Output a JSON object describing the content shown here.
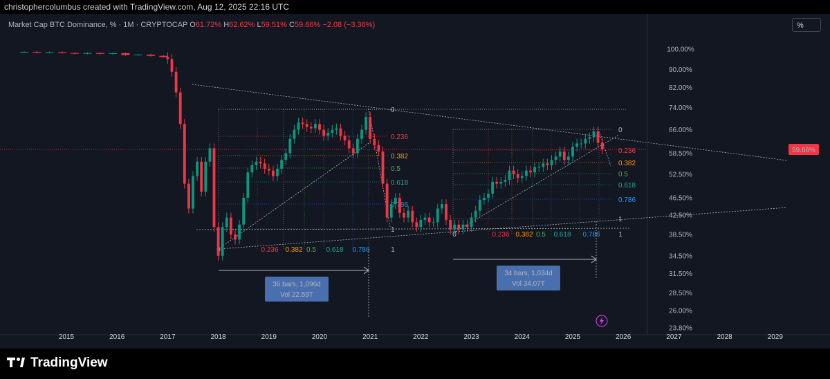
{
  "attribution": "christophercolumbus created with TradingView.com, Aug 12, 2025 22:16 UTC",
  "legend": {
    "symbol": "Market Cap BTC Dominance, % · 1M · CRYPTOCAP",
    "o_label": "O",
    "o": "61.72%",
    "h_label": "H",
    "h": "62.62%",
    "l_label": "L",
    "l": "59.51%",
    "c_label": "C",
    "c": "59.66%",
    "change": "−2.08 (−3.36%)"
  },
  "scale_button": "%",
  "logo": "TradingView",
  "colors": {
    "up": "#089981",
    "down": "#f23645",
    "bg": "#131722"
  },
  "chart_data": {
    "type": "candlestick",
    "y_scale": "log",
    "y_ticks": [
      "100.00%",
      "90.00%",
      "82.00%",
      "74.00%",
      "66.00%",
      "58.50%",
      "52.50%",
      "46.50%",
      "42.50%",
      "38.50%",
      "34.50%",
      "31.50%",
      "28.50%",
      "26.00%",
      "23.80%"
    ],
    "y_tick_values": [
      100,
      90,
      82,
      74,
      66,
      58.5,
      52.5,
      46.5,
      42.5,
      38.5,
      34.5,
      31.5,
      28.5,
      26,
      23.8
    ],
    "x_ticks": [
      "2015",
      "2016",
      "2017",
      "2018",
      "2019",
      "2020",
      "2021",
      "2022",
      "2023",
      "2024",
      "2025",
      "2026",
      "2027",
      "2028",
      "2029"
    ],
    "last_price_label": "59.66%",
    "last_price": 59.66,
    "closes": [
      {
        "date": "2014-03",
        "close": 98.6
      },
      {
        "date": "2014-06",
        "close": 98.2
      },
      {
        "date": "2014-09",
        "close": 98.4
      },
      {
        "date": "2014-12",
        "close": 98.0
      },
      {
        "date": "2015-03",
        "close": 97.7
      },
      {
        "date": "2015-06",
        "close": 98.0
      },
      {
        "date": "2015-09",
        "close": 97.6
      },
      {
        "date": "2015-12",
        "close": 97.9
      },
      {
        "date": "2016-03",
        "close": 97.0
      },
      {
        "date": "2016-06",
        "close": 97.2
      },
      {
        "date": "2016-09",
        "close": 96.6
      },
      {
        "date": "2016-12",
        "close": 96.0
      },
      {
        "date": "2017-01",
        "close": 95.0
      },
      {
        "date": "2017-02",
        "close": 89.0
      },
      {
        "date": "2017-03",
        "close": 80.0
      },
      {
        "date": "2017-04",
        "close": 68.0
      },
      {
        "date": "2017-05",
        "close": 50.0
      },
      {
        "date": "2017-06",
        "close": 44.0
      },
      {
        "date": "2017-07",
        "close": 52.0
      },
      {
        "date": "2017-08",
        "close": 56.0
      },
      {
        "date": "2017-09",
        "close": 48.0
      },
      {
        "date": "2017-10",
        "close": 56.0
      },
      {
        "date": "2017-11",
        "close": 60.0
      },
      {
        "date": "2017-12",
        "close": 40.0
      },
      {
        "date": "2018-01",
        "close": 34.5
      },
      {
        "date": "2018-02",
        "close": 40.0
      },
      {
        "date": "2018-03",
        "close": 42.0
      },
      {
        "date": "2018-04",
        "close": 38.5
      },
      {
        "date": "2018-05",
        "close": 37.5
      },
      {
        "date": "2018-06",
        "close": 40.5
      },
      {
        "date": "2018-07",
        "close": 46.5
      },
      {
        "date": "2018-08",
        "close": 53.0
      },
      {
        "date": "2018-09",
        "close": 55.0
      },
      {
        "date": "2018-10",
        "close": 56.0
      },
      {
        "date": "2018-11",
        "close": 55.5
      },
      {
        "date": "2018-12",
        "close": 54.0
      },
      {
        "date": "2019-01",
        "close": 53.5
      },
      {
        "date": "2019-02",
        "close": 52.0
      },
      {
        "date": "2019-03",
        "close": 54.0
      },
      {
        "date": "2019-04",
        "close": 56.5
      },
      {
        "date": "2019-05",
        "close": 58.5
      },
      {
        "date": "2019-06",
        "close": 63.0
      },
      {
        "date": "2019-07",
        "close": 66.0
      },
      {
        "date": "2019-08",
        "close": 68.5
      },
      {
        "date": "2019-09",
        "close": 68.0
      },
      {
        "date": "2019-10",
        "close": 67.0
      },
      {
        "date": "2019-11",
        "close": 66.5
      },
      {
        "date": "2019-12",
        "close": 68.0
      },
      {
        "date": "2020-01",
        "close": 66.0
      },
      {
        "date": "2020-02",
        "close": 64.0
      },
      {
        "date": "2020-03",
        "close": 65.0
      },
      {
        "date": "2020-04",
        "close": 66.0
      },
      {
        "date": "2020-05",
        "close": 66.5
      },
      {
        "date": "2020-06",
        "close": 64.0
      },
      {
        "date": "2020-07",
        "close": 62.5
      },
      {
        "date": "2020-08",
        "close": 60.0
      },
      {
        "date": "2020-09",
        "close": 58.5
      },
      {
        "date": "2020-10",
        "close": 63.0
      },
      {
        "date": "2020-11",
        "close": 66.0
      },
      {
        "date": "2020-12",
        "close": 70.5
      },
      {
        "date": "2021-01",
        "close": 63.0
      },
      {
        "date": "2021-02",
        "close": 61.0
      },
      {
        "date": "2021-03",
        "close": 59.0
      },
      {
        "date": "2021-04",
        "close": 50.0
      },
      {
        "date": "2021-05",
        "close": 42.0
      },
      {
        "date": "2021-06",
        "close": 45.0
      },
      {
        "date": "2021-07",
        "close": 46.5
      },
      {
        "date": "2021-08",
        "close": 43.0
      },
      {
        "date": "2021-09",
        "close": 42.0
      },
      {
        "date": "2021-10",
        "close": 43.5
      },
      {
        "date": "2021-11",
        "close": 41.0
      },
      {
        "date": "2021-12",
        "close": 40.0
      },
      {
        "date": "2022-01",
        "close": 41.5
      },
      {
        "date": "2022-02",
        "close": 42.0
      },
      {
        "date": "2022-03",
        "close": 41.0
      },
      {
        "date": "2022-04",
        "close": 41.0
      },
      {
        "date": "2022-05",
        "close": 44.0
      },
      {
        "date": "2022-06",
        "close": 45.0
      },
      {
        "date": "2022-07",
        "close": 41.5
      },
      {
        "date": "2022-08",
        "close": 39.5
      },
      {
        "date": "2022-09",
        "close": 40.5
      },
      {
        "date": "2022-10",
        "close": 39.5
      },
      {
        "date": "2022-11",
        "close": 40.5
      },
      {
        "date": "2022-12",
        "close": 40.0
      },
      {
        "date": "2023-01",
        "close": 42.0
      },
      {
        "date": "2023-02",
        "close": 43.5
      },
      {
        "date": "2023-03",
        "close": 46.0
      },
      {
        "date": "2023-04",
        "close": 46.5
      },
      {
        "date": "2023-05",
        "close": 47.5
      },
      {
        "date": "2023-06",
        "close": 50.5
      },
      {
        "date": "2023-07",
        "close": 50.0
      },
      {
        "date": "2023-08",
        "close": 50.5
      },
      {
        "date": "2023-09",
        "close": 51.0
      },
      {
        "date": "2023-10",
        "close": 53.5
      },
      {
        "date": "2023-11",
        "close": 52.5
      },
      {
        "date": "2023-12",
        "close": 51.5
      },
      {
        "date": "2024-01",
        "close": 52.0
      },
      {
        "date": "2024-02",
        "close": 53.5
      },
      {
        "date": "2024-03",
        "close": 53.0
      },
      {
        "date": "2024-04",
        "close": 54.5
      },
      {
        "date": "2024-05",
        "close": 54.5
      },
      {
        "date": "2024-06",
        "close": 55.5
      },
      {
        "date": "2024-07",
        "close": 55.0
      },
      {
        "date": "2024-08",
        "close": 56.5
      },
      {
        "date": "2024-09",
        "close": 57.5
      },
      {
        "date": "2024-10",
        "close": 59.0
      },
      {
        "date": "2024-11",
        "close": 56.5
      },
      {
        "date": "2024-12",
        "close": 57.5
      },
      {
        "date": "2025-01",
        "close": 60.5
      },
      {
        "date": "2025-02",
        "close": 61.5
      },
      {
        "date": "2025-03",
        "close": 61.5
      },
      {
        "date": "2025-04",
        "close": 63.0
      },
      {
        "date": "2025-05",
        "close": 63.5
      },
      {
        "date": "2025-06",
        "close": 65.5
      },
      {
        "date": "2025-07",
        "close": 61.7
      },
      {
        "date": "2025-08",
        "close": 59.66
      }
    ],
    "fib_levels": [
      "0",
      "0.236",
      "0.382",
      "0.5",
      "0.618",
      "0.786",
      "1"
    ],
    "fib_bottom_labels_left": [
      "0",
      "0.236",
      "0.382",
      "0.5",
      "0.618",
      "0.786",
      "1"
    ],
    "fib_bottom_labels_right": [
      "0",
      "0.236",
      "0.382",
      "0.5",
      "0.618",
      "0.786",
      "1"
    ],
    "range_boxes": [
      {
        "line1": "36 bars, 1,096d",
        "line2": "Vol 22.59T"
      },
      {
        "line1": "34 bars, 1,034d",
        "line2": "Vol 34.07T"
      }
    ]
  }
}
